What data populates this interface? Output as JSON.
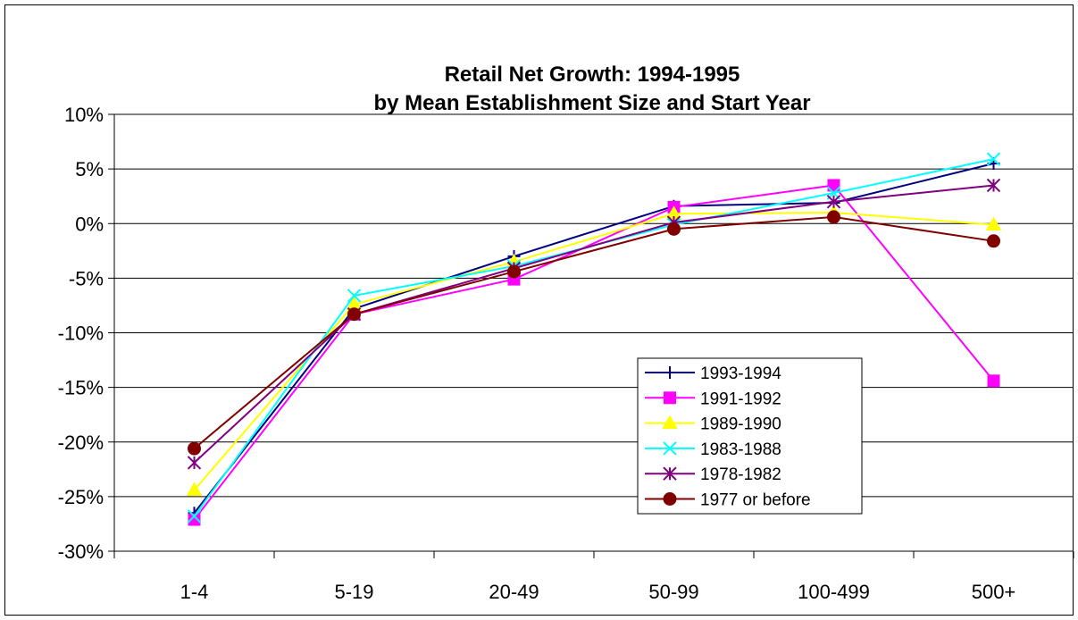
{
  "chart_data": {
    "type": "line",
    "title": "Retail Net Growth: 1994-1995",
    "subtitle": "by Mean Establishment Size and Start Year",
    "xlabel": "",
    "ylabel": "",
    "categories": [
      "1-4",
      "5-19",
      "20-49",
      "50-99",
      "100-499",
      "500+"
    ],
    "ylim": [
      -30,
      10
    ],
    "yticks": [
      10,
      5,
      0,
      -5,
      -10,
      -15,
      -20,
      -25,
      -30
    ],
    "ytick_labels": [
      "10%",
      "5%",
      "0%",
      "-5%",
      "-10%",
      "-15%",
      "-20%",
      "-25%",
      "-30%"
    ],
    "grid": "horizontal",
    "legend_position": "bottom-right",
    "series": [
      {
        "name": "1993-1994",
        "color": "#000080",
        "marker": "plus",
        "values": [
          -26.5,
          -7.8,
          -3.0,
          1.6,
          1.9,
          5.5
        ]
      },
      {
        "name": "1991-1992",
        "color": "#FF00FF",
        "marker": "square",
        "values": [
          -27.1,
          -8.3,
          -5.1,
          1.5,
          3.5,
          -14.4
        ]
      },
      {
        "name": "1989-1990",
        "color": "#FFFF00",
        "marker": "triangle",
        "values": [
          -24.4,
          -7.4,
          -3.5,
          0.9,
          1.0,
          -0.1
        ]
      },
      {
        "name": "1983-1988",
        "color": "#00FFFF",
        "marker": "x",
        "values": [
          -26.8,
          -6.6,
          -3.9,
          -0.1,
          2.8,
          5.9
        ]
      },
      {
        "name": "1978-1982",
        "color": "#800080",
        "marker": "asterisk",
        "values": [
          -21.9,
          -8.3,
          -4.1,
          0.1,
          2.0,
          3.5
        ]
      },
      {
        "name": "1977 or before",
        "color": "#800000",
        "marker": "circle",
        "values": [
          -20.6,
          -8.3,
          -4.4,
          -0.5,
          0.6,
          -1.6
        ]
      }
    ]
  }
}
